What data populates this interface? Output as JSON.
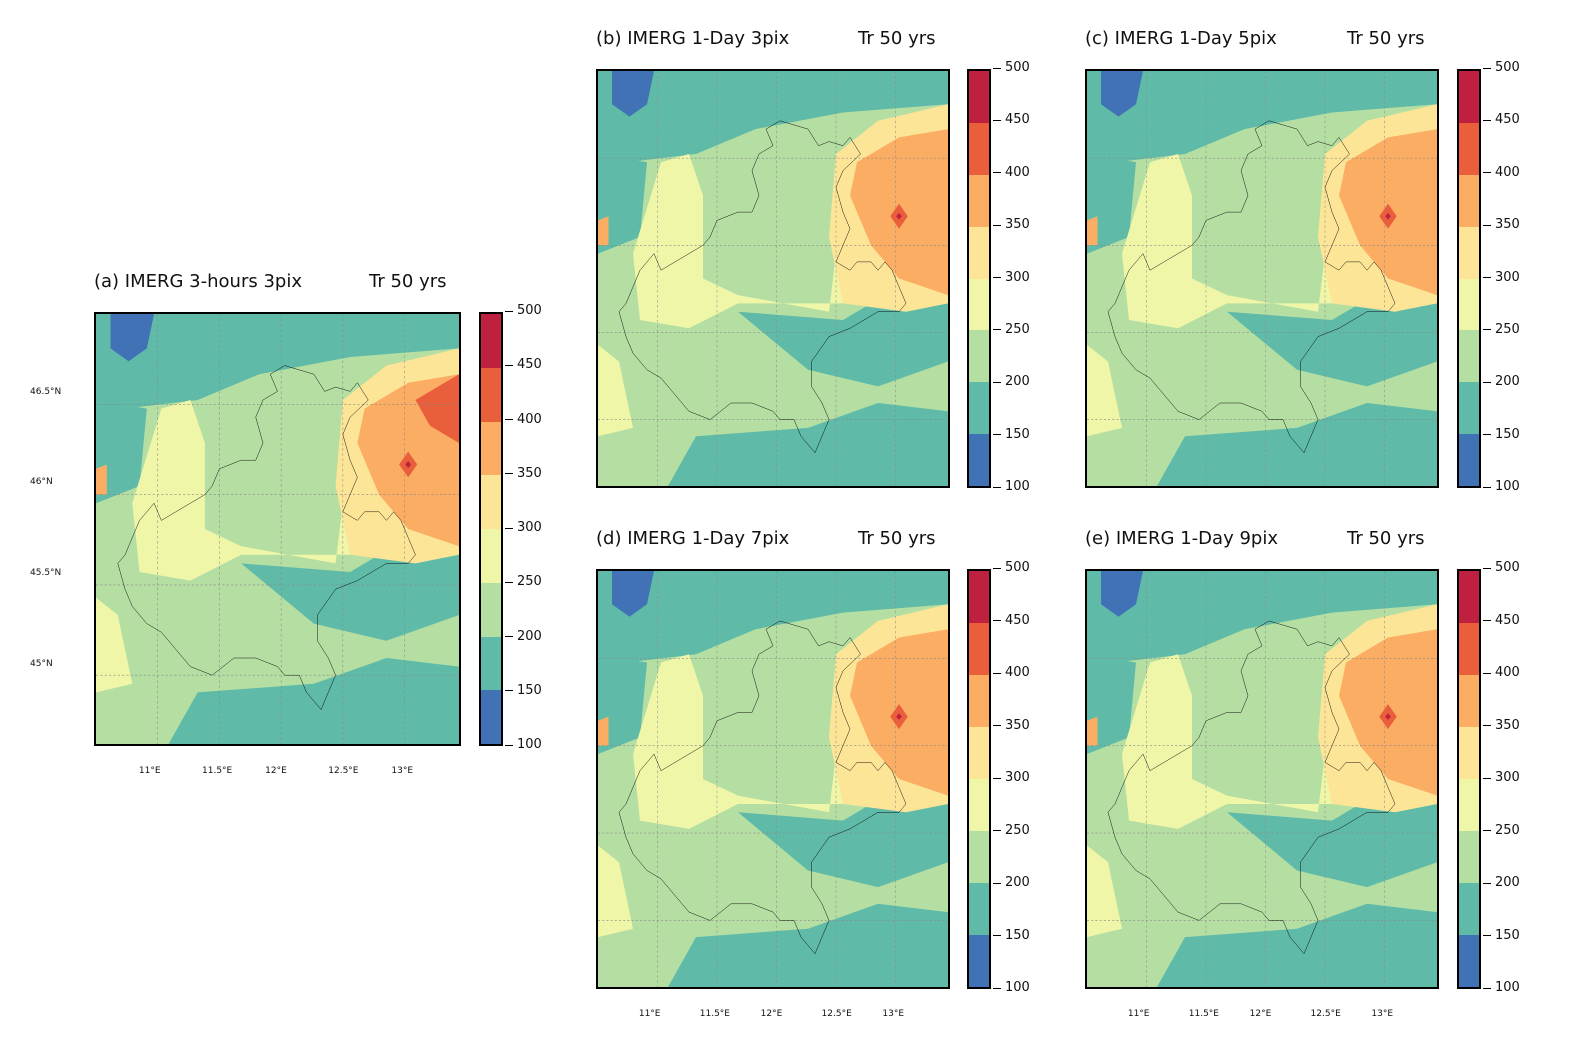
{
  "panels": [
    {
      "id": "a",
      "title": "(a) IMERG 3-hours 3pix",
      "right_title": "Tr 50 yrs",
      "show_yticks": true,
      "show_xticks": true
    },
    {
      "id": "b",
      "title": "(b) IMERG 1-Day 3pix",
      "right_title": "Tr 50 yrs",
      "show_yticks": false,
      "show_xticks": false
    },
    {
      "id": "c",
      "title": "(c) IMERG 1-Day 5pix",
      "right_title": "Tr 50 yrs",
      "show_yticks": false,
      "show_xticks": false
    },
    {
      "id": "d",
      "title": "(d) IMERG 1-Day 7pix",
      "right_title": "Tr 50 yrs",
      "show_yticks": false,
      "show_xticks": true
    },
    {
      "id": "e",
      "title": "(e) IMERG 1-Day 9pix",
      "right_title": "Tr 50 yrs",
      "show_yticks": false,
      "show_xticks": true
    }
  ],
  "colorbar": {
    "ticks": [
      "500",
      "450",
      "400",
      "350",
      "300",
      "250",
      "200",
      "150",
      "100"
    ],
    "colors": [
      "#c02040",
      "#ea5f3b",
      "#fbad63",
      "#fde597",
      "#eff6a8",
      "#b5dea3",
      "#5fbba8",
      "#4072b5"
    ]
  },
  "axes": {
    "x_ticks": [
      "11°E",
      "11.5°E",
      "12°E",
      "12.5°E",
      "13°E"
    ],
    "y_ticks": [
      "46.5°N",
      "46°N",
      "45.5°N",
      "45°N"
    ]
  }
}
